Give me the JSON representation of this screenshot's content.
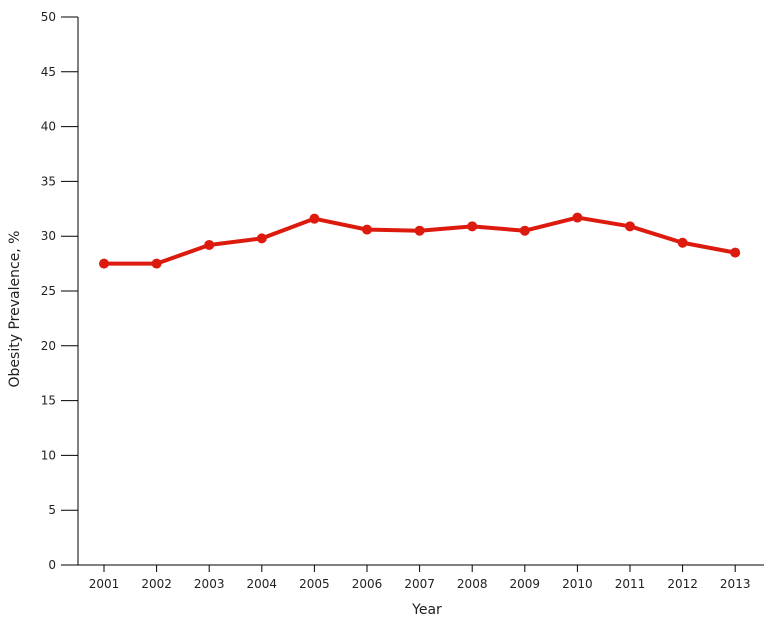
{
  "chart_data": {
    "type": "line",
    "title": "",
    "xlabel": "Year",
    "ylabel": "Obesity Prevalence, %",
    "categories": [
      "2001",
      "2002",
      "2003",
      "2004",
      "2005",
      "2006",
      "2007",
      "2008",
      "2009",
      "2010",
      "2011",
      "2012",
      "2013"
    ],
    "series": [
      {
        "name": "Obesity Prevalence",
        "color": "#dd1a0e",
        "values": [
          27.5,
          27.5,
          29.2,
          29.8,
          31.6,
          30.6,
          30.5,
          30.9,
          30.5,
          31.7,
          30.9,
          29.4,
          28.5
        ]
      }
    ],
    "ylim": [
      0,
      50
    ],
    "yticks": [
      0,
      5,
      10,
      15,
      20,
      25,
      30,
      35,
      40,
      45,
      50
    ],
    "grid": false,
    "legend": "none"
  }
}
